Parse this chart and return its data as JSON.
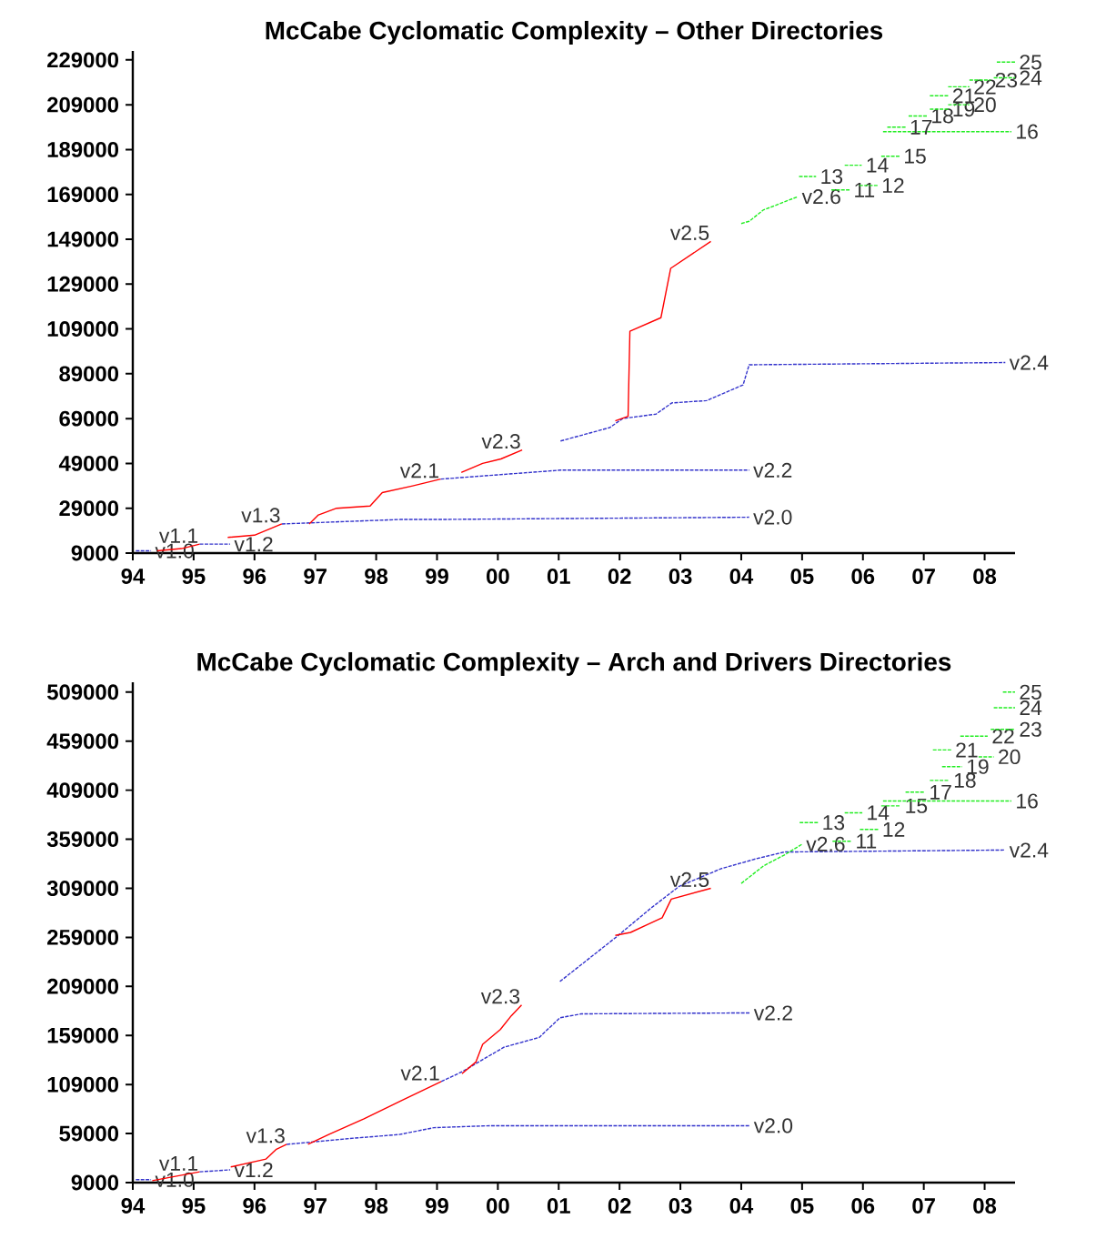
{
  "chart_data": [
    {
      "type": "line",
      "title": "McCabe Cyclomatic Complexity – Other Directories",
      "xlim": [
        1994,
        2008.5
      ],
      "ylim": [
        9000,
        233000
      ],
      "xticks": [
        {
          "value": 1994,
          "label": "94"
        },
        {
          "value": 1995,
          "label": "95"
        },
        {
          "value": 1996,
          "label": "96"
        },
        {
          "value": 1997,
          "label": "97"
        },
        {
          "value": 1998,
          "label": "98"
        },
        {
          "value": 1999,
          "label": "99"
        },
        {
          "value": 2000,
          "label": "00"
        },
        {
          "value": 2001,
          "label": "01"
        },
        {
          "value": 2002,
          "label": "02"
        },
        {
          "value": 2003,
          "label": "03"
        },
        {
          "value": 2004,
          "label": "04"
        },
        {
          "value": 2005,
          "label": "05"
        },
        {
          "value": 2006,
          "label": "06"
        },
        {
          "value": 2007,
          "label": "07"
        },
        {
          "value": 2008,
          "label": "08"
        }
      ],
      "yticks": [
        9000,
        29000,
        49000,
        69000,
        89000,
        109000,
        129000,
        149000,
        169000,
        189000,
        209000,
        229000
      ],
      "series": [
        {
          "name": "v1.0",
          "color": "#3333cc",
          "line_style": "dashed",
          "x": [
            1994.05,
            1994.3
          ],
          "values": [
            10000,
            10000
          ]
        },
        {
          "name": "v1.1",
          "color": "#ff0000",
          "line_style": "solid",
          "x": [
            1994.4,
            1994.8,
            1995.1
          ],
          "values": [
            10000,
            11000,
            13000
          ]
        },
        {
          "name": "v1.2",
          "color": "#3333cc",
          "line_style": "dashed",
          "x": [
            1995.1,
            1995.6
          ],
          "values": [
            13000,
            13000
          ]
        },
        {
          "name": "v1.3",
          "color": "#ff0000",
          "line_style": "solid",
          "x": [
            1995.56,
            1996.0,
            1996.45
          ],
          "values": [
            16000,
            17000,
            22000
          ]
        },
        {
          "name": "v2.0",
          "color": "#3333cc",
          "line_style": "dashed",
          "x": [
            1996.45,
            1998.4,
            1999.0,
            2004.13
          ],
          "values": [
            22000,
            24000,
            24000,
            25000
          ]
        },
        {
          "name": "v2.1",
          "color": "#ff0000",
          "line_style": "solid",
          "x": [
            1996.9,
            1997.05,
            1997.35,
            1997.9,
            1998.1,
            1998.6,
            1999.06
          ],
          "values": [
            22000,
            26000,
            29000,
            30000,
            36000,
            39000,
            42000
          ]
        },
        {
          "name": "v2.2",
          "color": "#3333cc",
          "line_style": "dashed",
          "x": [
            1999.06,
            2001.03,
            2004.13
          ],
          "values": [
            42000,
            46000,
            46000
          ]
        },
        {
          "name": "v2.3",
          "color": "#ff0000",
          "line_style": "solid",
          "x": [
            1999.4,
            1999.75,
            2000.05,
            2000.4
          ],
          "values": [
            45000,
            49000,
            51000,
            55000
          ]
        },
        {
          "name": "v2.4",
          "color": "#3333cc",
          "line_style": "dashed",
          "x": [
            2001.03,
            2001.84,
            2002.05,
            2002.6,
            2002.86,
            2003.43,
            2004.03,
            2004.13,
            2008.34
          ],
          "values": [
            59000,
            65000,
            69000,
            71000,
            76000,
            77000,
            84000,
            93000,
            94000
          ]
        },
        {
          "name": "v2.5",
          "color": "#ff0000",
          "line_style": "solid",
          "x": [
            2001.93,
            2002.14,
            2002.17,
            2002.68,
            2002.84,
            2003.5
          ],
          "values": [
            68000,
            70000,
            108000,
            114000,
            136000,
            148000
          ]
        },
        {
          "name": "v2.6",
          "color": "#22ee22",
          "line_style": "dashed",
          "x": [
            2004.0,
            2004.13,
            2004.36,
            2004.93
          ],
          "values": [
            156000,
            157000,
            162000,
            168000
          ]
        },
        {
          "name": "11",
          "color": "#22ee22",
          "line_style": "dashed",
          "x": [
            2005.48,
            2005.78
          ],
          "values": [
            171000,
            171000
          ]
        },
        {
          "name": "12",
          "color": "#22ee22",
          "line_style": "dashed",
          "x": [
            2005.94,
            2006.24
          ],
          "values": [
            173000,
            173000
          ]
        },
        {
          "name": "13",
          "color": "#22ee22",
          "line_style": "dashed",
          "x": [
            2004.95,
            2005.23
          ],
          "values": [
            177000,
            177000
          ]
        },
        {
          "name": "14",
          "color": "#22ee22",
          "line_style": "dashed",
          "x": [
            2005.7,
            2005.98
          ],
          "values": [
            182000,
            182000
          ]
        },
        {
          "name": "15",
          "color": "#22ee22",
          "line_style": "dashed",
          "x": [
            2006.3,
            2006.6
          ],
          "values": [
            186000,
            186000
          ]
        },
        {
          "name": "16",
          "color": "#22ee22",
          "line_style": "dashed",
          "x": [
            2006.33,
            2008.44
          ],
          "values": [
            197000,
            197000
          ]
        },
        {
          "name": "17",
          "color": "#22ee22",
          "line_style": "dashed",
          "x": [
            2006.4,
            2006.7
          ],
          "values": [
            199000,
            199000
          ]
        },
        {
          "name": "18",
          "color": "#22ee22",
          "line_style": "dashed",
          "x": [
            2006.75,
            2007.05
          ],
          "values": [
            204000,
            204000
          ]
        },
        {
          "name": "19",
          "color": "#22ee22",
          "line_style": "dashed",
          "x": [
            2007.1,
            2007.4
          ],
          "values": [
            207000,
            207000
          ]
        },
        {
          "name": "20",
          "color": "#22ee22",
          "line_style": "dashed",
          "x": [
            2007.4,
            2007.75
          ],
          "values": [
            209000,
            209000
          ]
        },
        {
          "name": "21",
          "color": "#22ee22",
          "line_style": "dashed",
          "x": [
            2007.1,
            2007.4
          ],
          "values": [
            213000,
            213000
          ]
        },
        {
          "name": "22",
          "color": "#22ee22",
          "line_style": "dashed",
          "x": [
            2007.4,
            2007.75
          ],
          "values": [
            217000,
            217000
          ]
        },
        {
          "name": "23",
          "color": "#22ee22",
          "line_style": "dashed",
          "x": [
            2007.75,
            2008.1
          ],
          "values": [
            220000,
            220000
          ]
        },
        {
          "name": "24",
          "color": "#22ee22",
          "line_style": "dashed",
          "x": [
            2008.15,
            2008.5
          ],
          "values": [
            221000,
            221000
          ]
        },
        {
          "name": "25",
          "color": "#22ee22",
          "line_style": "dashed",
          "x": [
            2008.2,
            2008.5
          ],
          "values": [
            228000,
            228000
          ]
        }
      ]
    },
    {
      "type": "line",
      "title": "McCabe Cyclomatic Complexity – Arch and Drivers Directories",
      "xlim": [
        1994,
        2008.5
      ],
      "ylim": [
        9000,
        519000
      ],
      "xticks": [
        {
          "value": 1994,
          "label": "94"
        },
        {
          "value": 1995,
          "label": "95"
        },
        {
          "value": 1996,
          "label": "96"
        },
        {
          "value": 1997,
          "label": "97"
        },
        {
          "value": 1998,
          "label": "98"
        },
        {
          "value": 1999,
          "label": "99"
        },
        {
          "value": 2000,
          "label": "00"
        },
        {
          "value": 2001,
          "label": "01"
        },
        {
          "value": 2002,
          "label": "02"
        },
        {
          "value": 2003,
          "label": "03"
        },
        {
          "value": 2004,
          "label": "04"
        },
        {
          "value": 2005,
          "label": "05"
        },
        {
          "value": 2006,
          "label": "06"
        },
        {
          "value": 2007,
          "label": "07"
        },
        {
          "value": 2008,
          "label": "08"
        }
      ],
      "yticks": [
        9000,
        59000,
        109000,
        159000,
        209000,
        259000,
        309000,
        359000,
        409000,
        459000,
        509000
      ],
      "series": [
        {
          "name": "v1.0",
          "color": "#3333cc",
          "line_style": "dashed",
          "x": [
            1994.05,
            1994.3
          ],
          "values": [
            12000,
            12000
          ]
        },
        {
          "name": "v1.1",
          "color": "#ff0000",
          "line_style": "solid",
          "x": [
            1994.32,
            1995.1
          ],
          "values": [
            11000,
            20000
          ]
        },
        {
          "name": "v1.2",
          "color": "#3333cc",
          "line_style": "dashed",
          "x": [
            1995.1,
            1995.6
          ],
          "values": [
            20000,
            22000
          ]
        },
        {
          "name": "v1.3",
          "color": "#ff0000",
          "line_style": "solid",
          "x": [
            1995.61,
            1996.19,
            1996.36,
            1996.53
          ],
          "values": [
            25000,
            33000,
            43000,
            48000
          ]
        },
        {
          "name": "v2.0",
          "color": "#3333cc",
          "line_style": "dashed",
          "x": [
            1996.53,
            1997.57,
            1998.38,
            1998.95,
            1999.88,
            2004.14
          ],
          "values": [
            48000,
            54000,
            58000,
            65000,
            67000,
            67000
          ]
        },
        {
          "name": "v2.1",
          "color": "#ff0000",
          "line_style": "solid",
          "x": [
            1996.88,
            1997.22,
            1997.8,
            1998.43,
            1999.07
          ],
          "values": [
            48000,
            58000,
            74000,
            93000,
            112000
          ]
        },
        {
          "name": "v2.2",
          "color": "#3333cc",
          "line_style": "dashed",
          "x": [
            1999.07,
            1999.41,
            2000.1,
            2000.68,
            2001.02,
            2001.37,
            2004.14
          ],
          "values": [
            112000,
            122000,
            147000,
            157000,
            177000,
            181000,
            182000
          ]
        },
        {
          "name": "v2.3",
          "color": "#ff0000",
          "line_style": "solid",
          "x": [
            1999.41,
            1999.64,
            1999.75,
            2000.04,
            2000.22,
            2000.39
          ],
          "values": [
            120000,
            132000,
            150000,
            165000,
            179000,
            190000
          ]
        },
        {
          "name": "v2.4",
          "color": "#3333cc",
          "line_style": "dashed",
          "x": [
            2001.02,
            2001.94,
            2002.52,
            2002.98,
            2003.67,
            2004.24,
            2004.71,
            2008.34
          ],
          "values": [
            214000,
            259000,
            289000,
            311000,
            329000,
            339000,
            346000,
            348000
          ]
        },
        {
          "name": "v2.5",
          "color": "#ff0000",
          "line_style": "solid",
          "x": [
            2001.93,
            2002.18,
            2002.7,
            2002.85,
            2003.5
          ],
          "values": [
            261000,
            264000,
            279000,
            298000,
            309000
          ]
        },
        {
          "name": "v2.6",
          "color": "#22ee22",
          "line_style": "dashed",
          "x": [
            2004.0,
            2004.37,
            2004.71,
            2005.0
          ],
          "values": [
            314000,
            332000,
            343000,
            354000
          ]
        },
        {
          "name": "11",
          "color": "#22ee22",
          "line_style": "dashed",
          "x": [
            2005.5,
            2005.81
          ],
          "values": [
            357000,
            357000
          ]
        },
        {
          "name": "12",
          "color": "#22ee22",
          "line_style": "dashed",
          "x": [
            2005.95,
            2006.25
          ],
          "values": [
            369000,
            369000
          ]
        },
        {
          "name": "13",
          "color": "#22ee22",
          "line_style": "dashed",
          "x": [
            2004.96,
            2005.26
          ],
          "values": [
            376000,
            376000
          ]
        },
        {
          "name": "14",
          "color": "#22ee22",
          "line_style": "dashed",
          "x": [
            2005.7,
            2005.99
          ],
          "values": [
            386000,
            386000
          ]
        },
        {
          "name": "15",
          "color": "#22ee22",
          "line_style": "dashed",
          "x": [
            2006.3,
            2006.62
          ],
          "values": [
            393000,
            393000
          ]
        },
        {
          "name": "16",
          "color": "#22ee22",
          "line_style": "dashed",
          "x": [
            2006.33,
            2008.44
          ],
          "values": [
            398000,
            398000
          ]
        },
        {
          "name": "17",
          "color": "#22ee22",
          "line_style": "dashed",
          "x": [
            2006.7,
            2007.02
          ],
          "values": [
            407000,
            407000
          ]
        },
        {
          "name": "18",
          "color": "#22ee22",
          "line_style": "dashed",
          "x": [
            2007.1,
            2007.42
          ],
          "values": [
            419000,
            419000
          ]
        },
        {
          "name": "19",
          "color": "#22ee22",
          "line_style": "dashed",
          "x": [
            2007.3,
            2007.63
          ],
          "values": [
            433000,
            433000
          ]
        },
        {
          "name": "20",
          "color": "#22ee22",
          "line_style": "dashed",
          "x": [
            2007.9,
            2008.15
          ],
          "values": [
            443000,
            443000
          ]
        },
        {
          "name": "21",
          "color": "#22ee22",
          "line_style": "dashed",
          "x": [
            2007.15,
            2007.45
          ],
          "values": [
            450000,
            450000
          ]
        },
        {
          "name": "22",
          "color": "#22ee22",
          "line_style": "dashed",
          "x": [
            2007.6,
            2008.05
          ],
          "values": [
            464000,
            464000
          ]
        },
        {
          "name": "23",
          "color": "#22ee22",
          "line_style": "dashed",
          "x": [
            2008.1,
            2008.5
          ],
          "values": [
            471000,
            471000
          ]
        },
        {
          "name": "24",
          "color": "#22ee22",
          "line_style": "dashed",
          "x": [
            2008.15,
            2008.5
          ],
          "values": [
            493000,
            493000
          ]
        },
        {
          "name": "25",
          "color": "#22ee22",
          "line_style": "dashed",
          "x": [
            2008.3,
            2008.5
          ],
          "values": [
            509000,
            509000
          ]
        }
      ]
    }
  ]
}
